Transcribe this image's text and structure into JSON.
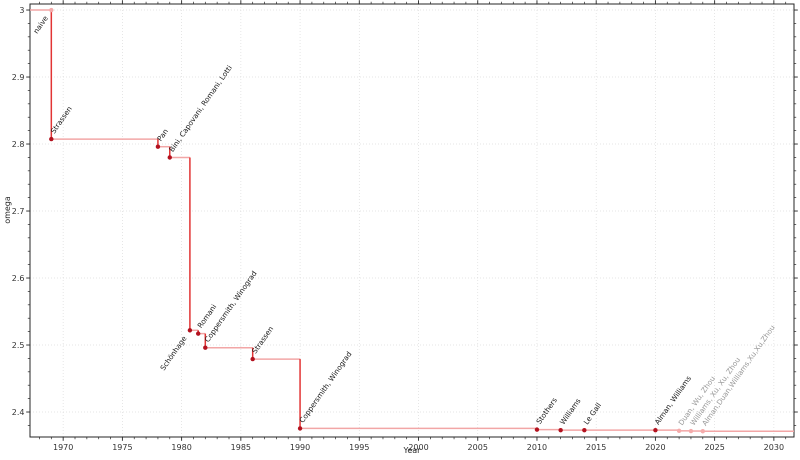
{
  "chart_data": {
    "type": "line",
    "subtype": "step-post",
    "title": "",
    "xlabel": "Year",
    "ylabel": "omega",
    "xlim": [
      1967.2,
      2031.7
    ],
    "ylim": [
      2.3627,
      3.009
    ],
    "grid": "dotted, major ticks, both axes",
    "legend": "none",
    "x_tick_values": [
      1970,
      1975,
      1980,
      1985,
      1990,
      1995,
      2000,
      2005,
      2010,
      2015,
      2020,
      2025,
      2030
    ],
    "x_tick_labels": [
      "1970",
      "1975",
      "1980",
      "1985",
      "1990",
      "1995",
      "2000",
      "2005",
      "2010",
      "2015",
      "2020",
      "2025",
      "2030"
    ],
    "x_minor_step": 1,
    "y_tick_values": [
      2.4,
      2.5,
      2.6,
      2.7,
      2.8,
      2.9,
      3.0
    ],
    "y_tick_labels": [
      "2.4",
      "2.5",
      "2.6",
      "2.7",
      "2.8",
      "2.9",
      "3"
    ],
    "y_minor_step": 0.02,
    "colors": {
      "line_light": "#f2a6a6",
      "line_strong": "#e23434",
      "marker_dark": "#b3121f",
      "marker_light": "#f4abab",
      "label_dark": "#1a1a1a",
      "label_gray": "#999999",
      "grid": "#dcdcdc",
      "axis": "#262626"
    },
    "points": [
      {
        "label": "naive",
        "year": 1969,
        "omega": 3.0,
        "marker": "light",
        "label_color": "dark",
        "label_side": "below"
      },
      {
        "label": "Strassen",
        "year": 1969,
        "omega": 2.8074,
        "marker": "dark",
        "label_color": "dark",
        "label_side": "above"
      },
      {
        "label": "Pan",
        "year": 1978,
        "omega": 2.796,
        "marker": "dark",
        "label_color": "dark",
        "label_side": "above"
      },
      {
        "label": "Bini, Capovani, Romani, Lotti",
        "year": 1979,
        "omega": 2.7799,
        "marker": "dark",
        "label_color": "dark",
        "label_side": "above"
      },
      {
        "label": "Schönhage",
        "year": 1980.7,
        "omega": 2.522,
        "marker": "dark",
        "label_color": "dark",
        "label_side": "below"
      },
      {
        "label": "Romani",
        "year": 1981.4,
        "omega": 2.517,
        "marker": "dark",
        "label_color": "dark",
        "label_side": "above"
      },
      {
        "label": "Coppersmith, Winograd",
        "year": 1982,
        "omega": 2.496,
        "marker": "dark",
        "label_color": "dark",
        "label_side": "above"
      },
      {
        "label": "Strassen",
        "year": 1986,
        "omega": 2.479,
        "marker": "dark",
        "label_color": "dark",
        "label_side": "above"
      },
      {
        "label": "Coppersmith, Winograd",
        "year": 1990,
        "omega": 2.3755,
        "marker": "dark",
        "label_color": "dark",
        "label_side": "above"
      },
      {
        "label": "Stothers",
        "year": 2010,
        "omega": 2.3737,
        "marker": "dark",
        "label_color": "dark",
        "label_side": "above"
      },
      {
        "label": "Williams",
        "year": 2012,
        "omega": 2.3729,
        "marker": "dark",
        "label_color": "dark",
        "label_side": "above"
      },
      {
        "label": "Le Gall",
        "year": 2014,
        "omega": 2.3729,
        "marker": "dark",
        "label_color": "dark",
        "label_side": "above"
      },
      {
        "label": "Alman, Williams",
        "year": 2020,
        "omega": 2.3729,
        "marker": "dark",
        "label_color": "dark",
        "label_side": "above"
      },
      {
        "label": "Duan, Wu, Zhou",
        "year": 2022,
        "omega": 2.3719,
        "marker": "light",
        "label_color": "gray",
        "label_side": "above"
      },
      {
        "label": "Williams, Xu, Xu, Zhou",
        "year": 2023,
        "omega": 2.3716,
        "marker": "light",
        "label_color": "gray",
        "label_side": "above"
      },
      {
        "label": "Alman,Duan,Williams,Xu,Xu,Zhou",
        "year": 2024,
        "omega": 2.3713,
        "marker": "light",
        "label_color": "gray",
        "label_side": "above"
      }
    ]
  }
}
